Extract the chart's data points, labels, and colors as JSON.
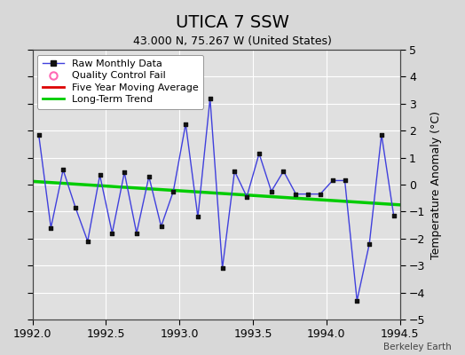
{
  "title": "UTICA 7 SSW",
  "subtitle": "43.000 N, 75.267 W (United States)",
  "ylabel": "Temperature Anomaly (°C)",
  "watermark": "Berkeley Earth",
  "xlim": [
    1992.0,
    1994.5
  ],
  "ylim": [
    -5,
    5
  ],
  "yticks": [
    -5,
    -4,
    -3,
    -2,
    -1,
    0,
    1,
    2,
    3,
    4,
    5
  ],
  "xticks": [
    1992.0,
    1992.5,
    1993.0,
    1993.5,
    1994.0,
    1994.5
  ],
  "background_color": "#d8d8d8",
  "plot_background": "#e0e0e0",
  "grid_color": "#ffffff",
  "raw_x": [
    1992.042,
    1992.125,
    1992.208,
    1992.292,
    1992.375,
    1992.458,
    1992.542,
    1992.625,
    1992.708,
    1992.792,
    1992.875,
    1992.958,
    1993.042,
    1993.125,
    1993.208,
    1993.292,
    1993.375,
    1993.458,
    1993.542,
    1993.625,
    1993.708,
    1993.792,
    1993.875,
    1993.958,
    1994.042,
    1994.125,
    1994.208,
    1994.292,
    1994.375,
    1994.458
  ],
  "raw_y": [
    1.85,
    -1.6,
    0.55,
    -0.85,
    -2.1,
    0.35,
    -1.8,
    0.45,
    -1.8,
    0.3,
    -1.55,
    -0.25,
    2.25,
    -1.2,
    3.2,
    -3.1,
    0.5,
    -0.45,
    1.15,
    -0.25,
    0.5,
    -0.35,
    -0.35,
    -0.35,
    0.15,
    0.15,
    -4.3,
    -2.2,
    1.85,
    -1.15
  ],
  "trend_x": [
    1992.0,
    1994.5
  ],
  "trend_y": [
    0.12,
    -0.75
  ],
  "raw_line_color": "#4040dd",
  "raw_marker_color": "#111111",
  "trend_color": "#00cc00",
  "moving_avg_color": "#dd0000",
  "qc_fail_color": "#ff69b4",
  "title_fontsize": 14,
  "subtitle_fontsize": 9,
  "tick_fontsize": 9,
  "ylabel_fontsize": 9,
  "legend_fontsize": 8
}
